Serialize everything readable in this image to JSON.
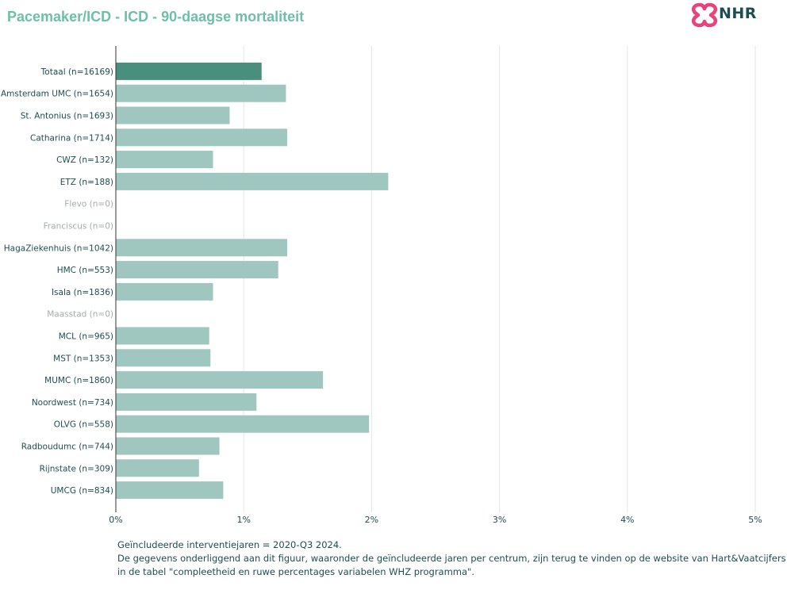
{
  "page": {
    "title": "Pacemaker/ICD - ICD - 90-daagse mortaliteit",
    "logo_text": "NHR"
  },
  "colors": {
    "total_bar": "#4a8f7d",
    "center_bar": "#9fc7bf",
    "label_active": "#1e4d4f",
    "label_inactive": "#a5acac",
    "grid": "#e6e6e6",
    "axis": "#333333",
    "title": "#6dbfa6",
    "logo": "#e8437b"
  },
  "chart_data": {
    "type": "bar",
    "orientation": "horizontal",
    "categories": [
      "Totaal (n=16169)",
      "Amsterdam UMC (n=1654)",
      "St. Antonius (n=1693)",
      "Catharina (n=1714)",
      "CWZ (n=132)",
      "ETZ (n=188)",
      "Flevo (n=0)",
      "Franciscus (n=0)",
      "HagaZiekenhuis (n=1042)",
      "HMC (n=553)",
      "Isala (n=1836)",
      "Maasstad (n=0)",
      "MCL (n=965)",
      "MST (n=1353)",
      "MUMC (n=1860)",
      "Noordwest (n=734)",
      "OLVG (n=558)",
      "Radboudumc (n=744)",
      "Rijnstate (n=309)",
      "UMCG (n=834)"
    ],
    "values": [
      1.14,
      1.33,
      0.89,
      1.34,
      0.76,
      2.13,
      null,
      null,
      1.34,
      1.27,
      0.76,
      null,
      0.73,
      0.74,
      1.62,
      1.1,
      1.98,
      0.81,
      0.65,
      0.84
    ],
    "xlim": [
      0,
      5
    ],
    "x_ticks": [
      "0%",
      "1%",
      "2%",
      "3%",
      "4%",
      "5%"
    ],
    "grid": true,
    "title": "Pacemaker/ICD - ICD - 90-daagse mortaliteit",
    "xlabel": "",
    "ylabel": ""
  },
  "footnote": {
    "line1": "Geïncludeerde interventiejaren = 2020-Q3 2024.",
    "line2": "De gegevens onderliggend aan dit figuur, waaronder de geïncludeerde jaren per centrum, zijn terug te vinden op de website van Hart&Vaatcijfers",
    "line3": "in de tabel \"compleetheid en ruwe percentages variabelen WHZ programma\"."
  }
}
